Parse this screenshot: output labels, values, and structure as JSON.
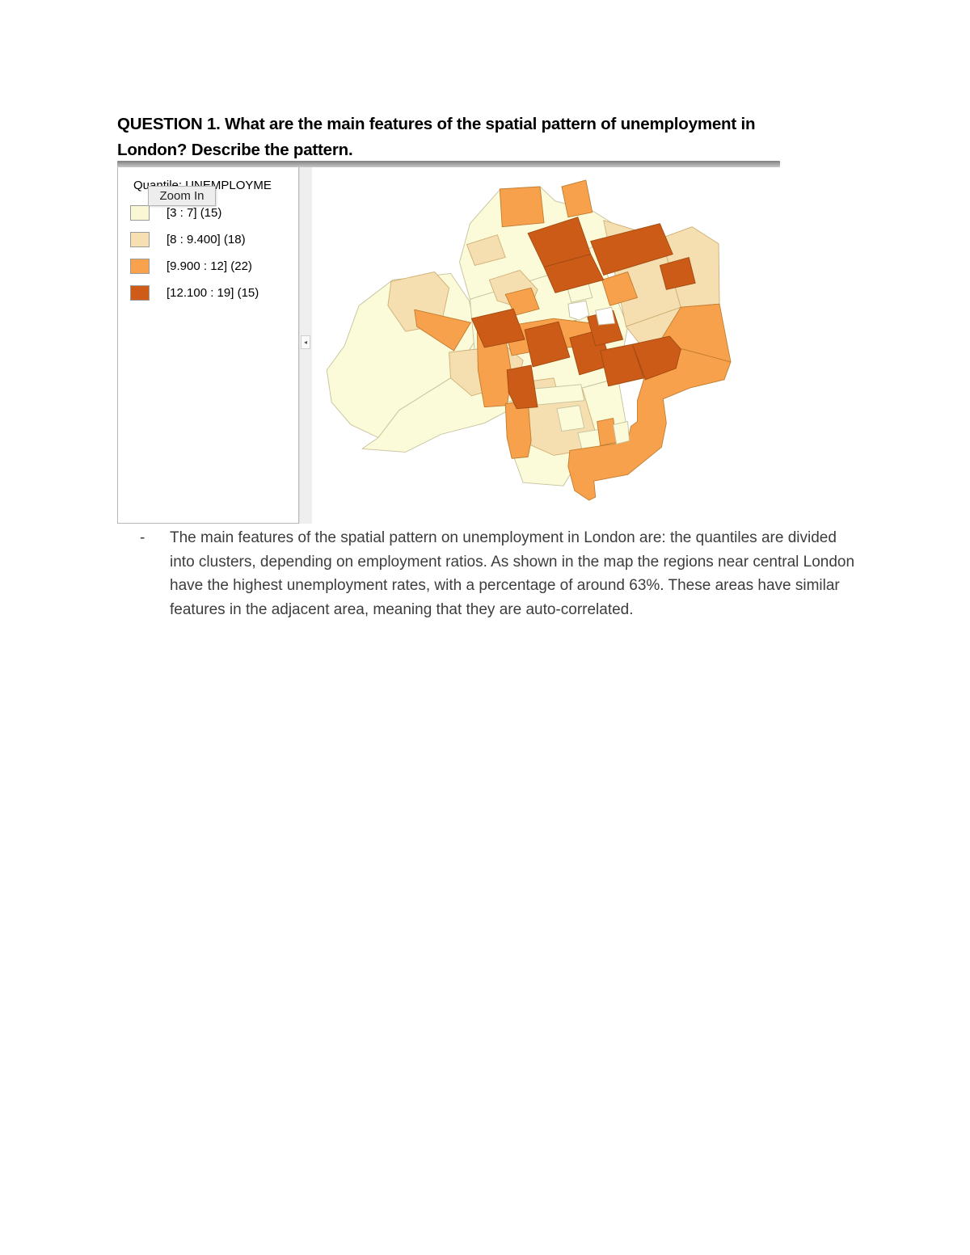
{
  "document": {
    "heading": "QUESTION 1. What are the main features of the spatial pattern of unemployment in London? Describe the pattern.",
    "bullet": "-",
    "answer": "The main features of the spatial pattern on unemployment in London are: the quantiles are divided into clusters, depending on employment ratios. As shown in the map the regions near central London have the highest unemployment rates, with a percentage of around 63%. These areas have similar features in the adjacent area, meaning that they are auto-correlated."
  },
  "gis_window": {
    "legend_title": "Quantile: UNEMPLOYME",
    "tooltip": "Zoom In",
    "collapse_arrow": "◂",
    "legend_items": [
      {
        "label": "[3 : 7] (15)",
        "color": "#FAF8D4"
      },
      {
        "label": "[8 : 9.400] (18)",
        "color": "#F6DFB0"
      },
      {
        "label": "[9.900 : 12] (22)",
        "color": "#F8A24E"
      },
      {
        "label": "[12.100 : 19] (15)",
        "color": "#CE5B17"
      }
    ]
  },
  "map": {
    "classes": [
      {
        "name": "hole",
        "fill": "#ffffff",
        "stroke": "#c2bd98"
      },
      {
        "name": "q1",
        "fill": "#FBFAD9",
        "stroke": "#c6c19b"
      },
      {
        "name": "q2",
        "fill": "#F5DFB0",
        "stroke": "#cfae74"
      },
      {
        "name": "q3",
        "fill": "#F8A14C",
        "stroke": "#c07c2e"
      },
      {
        "name": "q4",
        "fill": "#CC5B18",
        "stroke": "#a04a10"
      }
    ],
    "regions": [
      {
        "c": 1,
        "p": "40,222 58,172 100,140 172,132 195,166 205,212 172,262 108,302 82,336 48,320 24,292 18,252"
      },
      {
        "c": 1,
        "p": "82,336 108,302 172,262 205,212 242,216 252,262 248,300 214,318 160,332 116,354 62,350"
      },
      {
        "c": 1,
        "p": "183,118 196,70 233,28 283,24 302,42 348,54 390,80 384,100 352,96 300,132 240,156 196,164"
      },
      {
        "c": 1,
        "p": "196,164 300,132 352,96 392,198 380,262 308,282 240,292 204,252"
      },
      {
        "c": 1,
        "p": "240,292 308,282 380,262 392,330 340,350 312,396 262,392 242,336"
      },
      {
        "c": 2,
        "p": "98,142 152,130 170,150 160,196 116,204 94,172"
      },
      {
        "c": 2,
        "p": "192,96 230,84 240,112 202,122"
      },
      {
        "c": 2,
        "p": "220,140 258,128 280,152 270,178 230,166"
      },
      {
        "c": 2,
        "p": "362,66 434,88 458,174 390,198"
      },
      {
        "c": 2,
        "p": "434,88 472,74 505,95 506,170 458,174"
      },
      {
        "c": 2,
        "p": "390,198 458,174 506,170 474,238 420,236"
      },
      {
        "c": 2,
        "p": "170,230 240,222 262,240 256,268 198,284 172,262"
      },
      {
        "c": 2,
        "p": "256,268 300,262 308,292 262,300"
      },
      {
        "c": 2,
        "p": "302,196 328,190 336,218 308,224"
      },
      {
        "c": 1,
        "p": "316,146 342,140 348,162 322,168"
      },
      {
        "c": 2,
        "p": "262,286 336,276 352,330 336,352 300,358 264,342"
      },
      {
        "c": 1,
        "p": "268,276 334,270 338,290 272,296"
      },
      {
        "c": 1,
        "p": "304,300 332,296 338,324 310,328"
      },
      {
        "c": 1,
        "p": "330,330 356,326 360,350 336,354"
      },
      {
        "c": 3,
        "p": "233,27 283,24 288,69 236,74"
      },
      {
        "c": 3,
        "p": "310,24 340,16 348,56 318,62"
      },
      {
        "c": 3,
        "p": "127,177 197,193 176,228 130,198"
      },
      {
        "c": 3,
        "p": "205,205 238,198 248,258 242,296 214,298 206,252"
      },
      {
        "c": 3,
        "p": "238,198 300,188 348,194 360,206 336,222 280,228 248,234"
      },
      {
        "c": 3,
        "p": "240,158 272,150 282,176 252,184"
      },
      {
        "c": 3,
        "p": "360,140 392,130 404,162 370,172"
      },
      {
        "c": 3,
        "p": "284,96 312,88 320,116 292,124"
      },
      {
        "c": 3,
        "p": "458,174 506,170 520,242 460,226 420,236"
      },
      {
        "c": 3,
        "p": "320,352 374,344 392,340 396,322 404,316 404,290 412,264 404,240 420,236 460,226 520,242 512,264 470,274 436,288 440,318 434,348 392,382 350,390 352,410 344,414 326,402 318,372"
      },
      {
        "c": 3,
        "p": "240,294 268,290 272,340 268,360 248,362 242,336"
      },
      {
        "c": 3,
        "p": "354,316 374,312 378,342 358,346"
      },
      {
        "c": 1,
        "p": "374,320 392,316 394,340 378,344"
      },
      {
        "c": 4,
        "p": "268,82 330,62 346,108 288,124"
      },
      {
        "c": 4,
        "p": "288,124 346,108 362,140 302,156"
      },
      {
        "c": 4,
        "p": "346,92 432,70 448,108 362,134"
      },
      {
        "c": 4,
        "p": "432,122 468,112 476,144 440,152"
      },
      {
        "c": 4,
        "p": "198,188 250,176 264,214 214,224"
      },
      {
        "c": 4,
        "p": "264,202 306,192 320,236 274,248"
      },
      {
        "c": 4,
        "p": "320,212 358,202 372,246 332,258"
      },
      {
        "c": 4,
        "p": "358,228 398,220 412,262 368,272"
      },
      {
        "c": 4,
        "p": "398,220 444,210 458,226 452,250 414,264"
      },
      {
        "c": 4,
        "p": "242,252 272,246 280,298 254,300 244,280"
      },
      {
        "c": 4,
        "p": "342,186 374,178 386,214 352,222"
      },
      {
        "c": 0,
        "p": "318,170 340,166 344,184 332,190 320,186"
      },
      {
        "c": 0,
        "p": "352,178 372,174 376,194 356,196"
      }
    ]
  }
}
